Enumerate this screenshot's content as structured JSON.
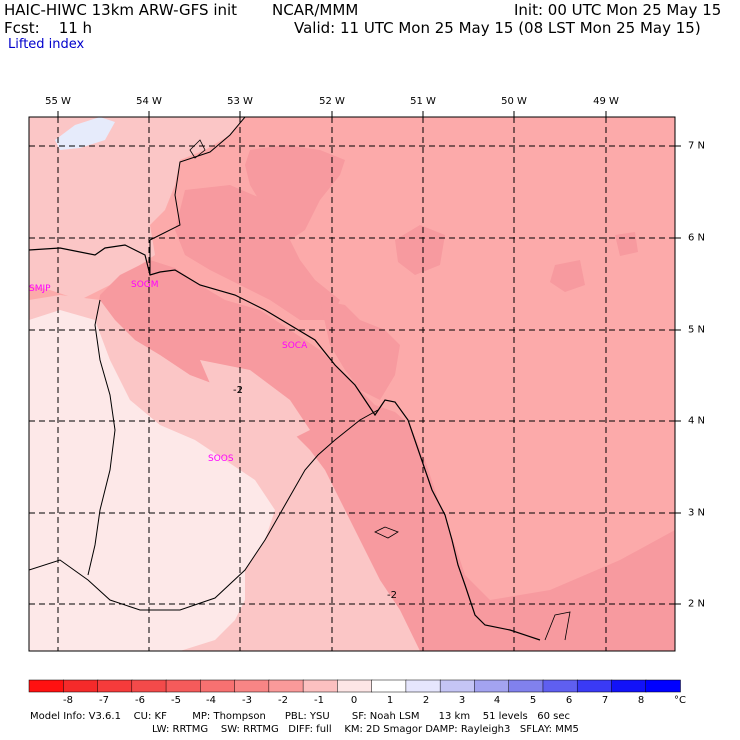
{
  "header": {
    "line1_left": "HAIC-HIWC 13km ARW-GFS init",
    "line1_mid": "NCAR/MMM",
    "line1_right": "Init: 00 UTC Mon 25 May 15",
    "line2_left": "Fcst:    11 h",
    "line2_right": "Valid: 11 UTC Mon 25 May 15 (08 LST Mon 25 May 15)",
    "field": "Lifted index"
  },
  "map": {
    "lon_labels": [
      "55 W",
      "54 W",
      "53 W",
      "52 W",
      "51 W",
      "50 W",
      "49 W"
    ],
    "lat_labels": [
      "7 N",
      "6 N",
      "5 N",
      "4 N",
      "3 N",
      "2 N"
    ],
    "stations": [
      "SMJP",
      "SOGM",
      "SOCA",
      "SOOS"
    ],
    "contour_labels": [
      "-2",
      "-2"
    ],
    "colors": {
      "ocean": "#fcaaaa",
      "coast_band": "#f79a9f",
      "land_mid": "#fbc6c6",
      "land_light": "#fde8e8",
      "blue_patch": "#e6ebfb",
      "border": "#000000",
      "station": "#ff00ff"
    }
  },
  "colorbar": {
    "labels": [
      "-8",
      "-7",
      "-6",
      "-5",
      "-4",
      "-3",
      "-2",
      "-1",
      "0",
      "1",
      "2",
      "3",
      "4",
      "5",
      "6",
      "7",
      "8",
      "°C"
    ],
    "colors": [
      "#ff1111",
      "#f52a2a",
      "#f63b3b",
      "#f34a4a",
      "#f55b5b",
      "#f77171",
      "#f88585",
      "#fa9a9a",
      "#fcc0c0",
      "#fde6e6",
      "#ffffff",
      "#e6e6fd",
      "#c5c5f5",
      "#a3a3f0",
      "#8181ed",
      "#5f5ff0",
      "#3a3af5",
      "#1212f8",
      "#0000ff"
    ]
  },
  "footer": {
    "line1": "Model Info: V3.6.1    CU: KF        MP: Thompson      PBL: YSU       SF: Noah LSM      13 km    51 levels   60 sec",
    "line2": "LW: RRTMG    SW: RRTMG   DIFF: full    KM: 2D Smagor DAMP: Rayleigh3   SFLAY: MM5"
  }
}
